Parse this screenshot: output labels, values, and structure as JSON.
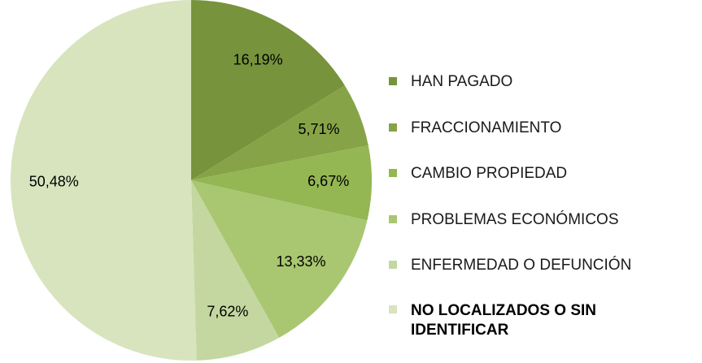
{
  "chart_data": {
    "type": "pie",
    "categories": [
      "HAN PAGADO",
      "FRACCIONAMIENTO",
      "CAMBIO PROPIEDAD",
      "PROBLEMAS ECONÓMICOS",
      "ENFERMEDAD O DEFUNCIÓN",
      "NO LOCALIZADOS O SIN IDENTIFICAR"
    ],
    "values": [
      16.19,
      5.71,
      6.67,
      13.33,
      7.62,
      50.48
    ],
    "value_labels": [
      "16,19%",
      "5,71%",
      "6,67%",
      "13,33%",
      "7,62%",
      "50,48%"
    ],
    "colors": [
      "#77933c",
      "#86a447",
      "#94b653",
      "#a9c770",
      "#c4d7a0",
      "#d7e4bd"
    ],
    "legend": "right"
  }
}
